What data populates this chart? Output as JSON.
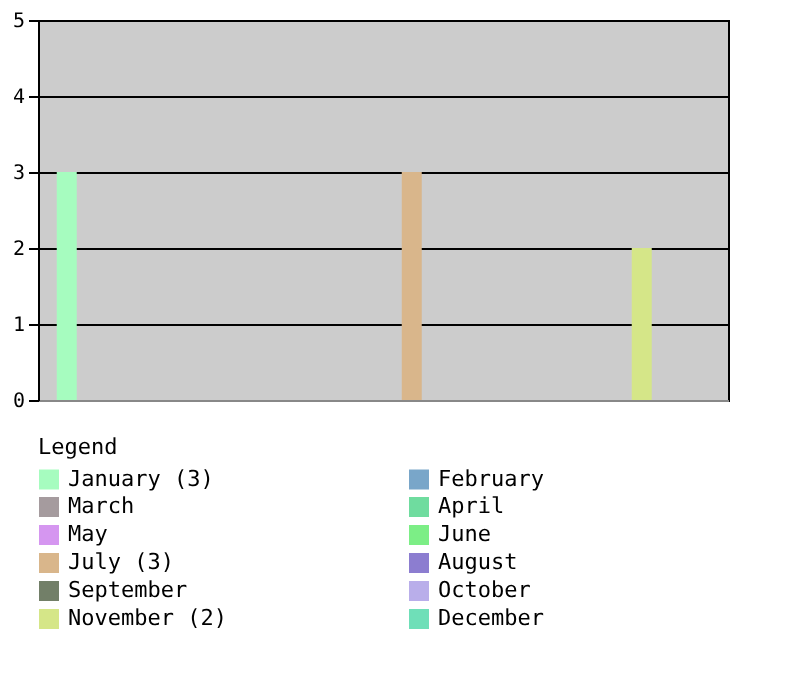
{
  "chart_data": {
    "type": "bar",
    "legend_title": "Legend",
    "categories": [
      null,
      null,
      null,
      null,
      null,
      null,
      null,
      null,
      null,
      null,
      null,
      null
    ],
    "series": [
      {
        "name": "January (3)",
        "color": "#a6fcbf",
        "values": [
          3,
          null,
          null,
          null,
          null,
          null,
          null,
          null,
          null,
          null,
          null,
          null
        ]
      },
      {
        "name": "February",
        "color": "#79a6c9",
        "values": [
          null,
          0,
          null,
          null,
          null,
          null,
          null,
          null,
          null,
          null,
          null,
          null
        ]
      },
      {
        "name": "March",
        "color": "#a59b9e",
        "values": [
          null,
          null,
          0,
          null,
          null,
          null,
          null,
          null,
          null,
          null,
          null,
          null
        ]
      },
      {
        "name": "April",
        "color": "#6fdc9f",
        "values": [
          null,
          null,
          null,
          0,
          null,
          null,
          null,
          null,
          null,
          null,
          null,
          null
        ]
      },
      {
        "name": "May",
        "color": "#d596f0",
        "values": [
          null,
          null,
          null,
          null,
          0,
          null,
          null,
          null,
          null,
          null,
          null,
          null
        ]
      },
      {
        "name": "June",
        "color": "#7cee86",
        "values": [
          null,
          null,
          null,
          null,
          null,
          0,
          null,
          null,
          null,
          null,
          null,
          null
        ]
      },
      {
        "name": "July (3)",
        "color": "#d9b68b",
        "values": [
          null,
          null,
          null,
          null,
          null,
          null,
          3,
          null,
          null,
          null,
          null,
          null
        ]
      },
      {
        "name": "August",
        "color": "#8c7dd0",
        "values": [
          null,
          null,
          null,
          null,
          null,
          null,
          null,
          0,
          null,
          null,
          null,
          null
        ]
      },
      {
        "name": "September",
        "color": "#727f68",
        "values": [
          null,
          null,
          null,
          null,
          null,
          null,
          null,
          null,
          0,
          null,
          null,
          null
        ]
      },
      {
        "name": "October",
        "color": "#b9aeea",
        "values": [
          null,
          null,
          null,
          null,
          null,
          null,
          null,
          null,
          null,
          0,
          null,
          null
        ]
      },
      {
        "name": "November (2)",
        "color": "#d5e688",
        "values": [
          null,
          null,
          null,
          null,
          null,
          null,
          null,
          null,
          null,
          null,
          2,
          null
        ]
      },
      {
        "name": "December",
        "color": "#6fdfb8",
        "values": [
          null,
          null,
          null,
          null,
          null,
          null,
          null,
          null,
          null,
          null,
          null,
          0
        ]
      }
    ],
    "ylim": [
      0,
      5
    ],
    "yticks": [
      0,
      1,
      2,
      3,
      4,
      5
    ],
    "grid": "y",
    "legend": "bottom",
    "tick_labels": "y"
  }
}
